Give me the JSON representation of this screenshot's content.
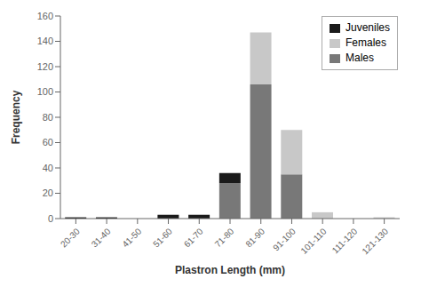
{
  "chart_data": {
    "type": "bar",
    "stacked": true,
    "xlabel": "Plastron Length (mm)",
    "ylabel": "Frequency",
    "categories": [
      "20-30",
      "31-40",
      "41-50",
      "51-60",
      "61-70",
      "71-80",
      "81-90",
      "91-100",
      "101-110",
      "111-120",
      "121-130"
    ],
    "series": [
      {
        "name": "Juveniles",
        "color": "#1a1a1a",
        "values": [
          1,
          1,
          0,
          3,
          3,
          8,
          0,
          0,
          0,
          0,
          0
        ]
      },
      {
        "name": "Females",
        "color": "#c8c8c8",
        "values": [
          0,
          0,
          0,
          0,
          0,
          0,
          41,
          35,
          5,
          0,
          1
        ]
      },
      {
        "name": "Males",
        "color": "#787878",
        "values": [
          0,
          0,
          0,
          0,
          0,
          28,
          106,
          35,
          0,
          0,
          0
        ]
      }
    ],
    "ylim": [
      0,
      160
    ],
    "yticks": [
      0,
      20,
      40,
      60,
      80,
      100,
      120,
      140,
      160
    ],
    "legend": "upper right",
    "grid": false
  }
}
